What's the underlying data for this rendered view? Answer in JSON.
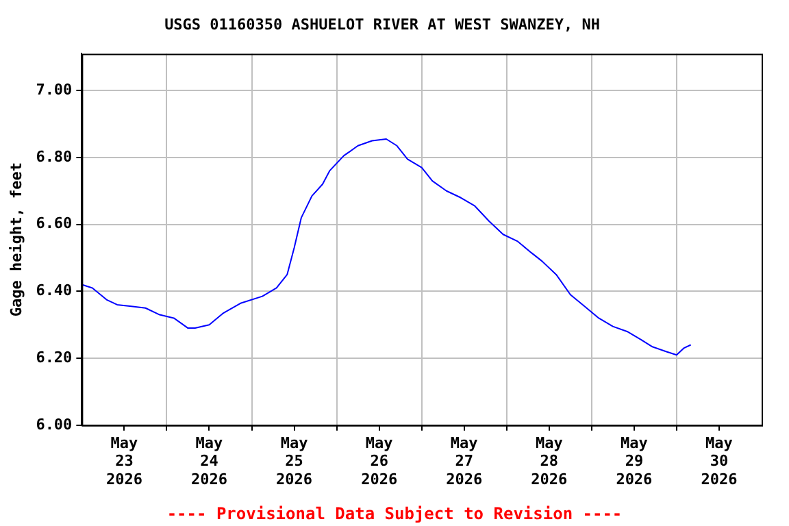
{
  "chart_data": {
    "type": "line",
    "title": "USGS 01160350 ASHUELOT RIVER AT WEST SWANZEY, NH",
    "ylabel": "Gage height, feet",
    "annotations": [
      "---- Provisional Data Subject to Revision ----"
    ],
    "x": [
      "2026-05-23T00:00",
      "2026-05-23T03:00",
      "2026-05-23T07:00",
      "2026-05-23T10:00",
      "2026-05-23T14:00",
      "2026-05-23T18:00",
      "2026-05-23T22:00",
      "2026-05-24T02:00",
      "2026-05-24T06:00",
      "2026-05-24T08:00",
      "2026-05-24T12:00",
      "2026-05-24T16:00",
      "2026-05-24T21:00",
      "2026-05-25T03:00",
      "2026-05-25T07:00",
      "2026-05-25T10:00",
      "2026-05-25T12:00",
      "2026-05-25T14:00",
      "2026-05-25T17:00",
      "2026-05-25T20:00",
      "2026-05-25T22:00",
      "2026-05-26T02:00",
      "2026-05-26T06:00",
      "2026-05-26T10:00",
      "2026-05-26T14:00",
      "2026-05-26T17:00",
      "2026-05-26T20:00",
      "2026-05-27T00:00",
      "2026-05-27T03:00",
      "2026-05-27T07:00",
      "2026-05-27T11:00",
      "2026-05-27T15:00",
      "2026-05-27T19:00",
      "2026-05-27T23:00",
      "2026-05-28T03:00",
      "2026-05-28T07:00",
      "2026-05-28T10:00",
      "2026-05-28T14:00",
      "2026-05-28T18:00",
      "2026-05-28T22:00",
      "2026-05-29T02:00",
      "2026-05-29T06:00",
      "2026-05-29T10:00",
      "2026-05-29T14:00",
      "2026-05-29T17:00",
      "2026-05-29T21:00",
      "2026-05-30T00:00",
      "2026-05-30T02:00",
      "2026-05-30T04:00"
    ],
    "series": [
      {
        "color": "#0000ff",
        "values": [
          6.42,
          6.41,
          6.375,
          6.36,
          6.355,
          6.35,
          6.33,
          6.32,
          6.29,
          6.29,
          6.3,
          6.335,
          6.365,
          6.385,
          6.41,
          6.45,
          6.53,
          6.62,
          6.685,
          6.72,
          6.76,
          6.805,
          6.835,
          6.85,
          6.855,
          6.835,
          6.795,
          6.77,
          6.73,
          6.7,
          6.68,
          6.655,
          6.61,
          6.57,
          6.55,
          6.515,
          6.49,
          6.45,
          6.39,
          6.355,
          6.32,
          6.295,
          6.28,
          6.255,
          6.235,
          6.22,
          6.21,
          6.23,
          6.24
        ]
      }
    ],
    "xlim": [
      "2026-05-23T00:00",
      "2026-05-31T00:00"
    ],
    "xticks": [
      {
        "value": "2026-05-23T12:00",
        "label": "May 23 2026"
      },
      {
        "value": "2026-05-24T00:00",
        "label": null
      },
      {
        "value": "2026-05-24T12:00",
        "label": "May 24 2026"
      },
      {
        "value": "2026-05-25T00:00",
        "label": null
      },
      {
        "value": "2026-05-25T12:00",
        "label": "May 25 2026"
      },
      {
        "value": "2026-05-26T00:00",
        "label": null
      },
      {
        "value": "2026-05-26T12:00",
        "label": "May 26 2026"
      },
      {
        "value": "2026-05-27T00:00",
        "label": null
      },
      {
        "value": "2026-05-27T12:00",
        "label": "May 27 2026"
      },
      {
        "value": "2026-05-28T00:00",
        "label": null
      },
      {
        "value": "2026-05-28T12:00",
        "label": "May 28 2026"
      },
      {
        "value": "2026-05-29T00:00",
        "label": null
      },
      {
        "value": "2026-05-29T12:00",
        "label": "May 29 2026"
      },
      {
        "value": "2026-05-30T00:00",
        "label": null
      },
      {
        "value": "2026-05-30T12:00",
        "label": "May 30 2026"
      }
    ],
    "ylim": [
      6.0,
      7.11
    ],
    "yticks": [
      {
        "value": 6,
        "label": "6.00"
      },
      {
        "value": 6.2,
        "label": "6.20"
      },
      {
        "value": 6.4,
        "label": "6.40"
      },
      {
        "value": 6.6,
        "label": "6.60"
      },
      {
        "value": 6.8,
        "label": "6.80"
      },
      {
        "value": 7,
        "label": "7.00"
      }
    ],
    "grid": true,
    "legend": false,
    "marker": "none",
    "line_style": "solid"
  }
}
